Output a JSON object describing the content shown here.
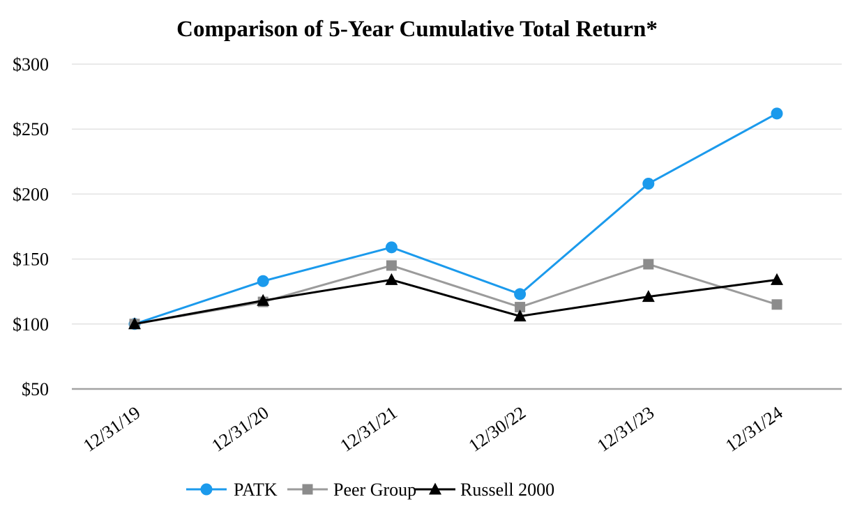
{
  "chart_data": {
    "type": "line",
    "title": "Comparison of 5-Year Cumulative Total Return*",
    "categories": [
      "12/31/19",
      "12/31/20",
      "12/31/21",
      "12/30/22",
      "12/31/23",
      "12/31/24"
    ],
    "series": [
      {
        "name": "PATK",
        "marker": "circle",
        "color": "#1b9aec",
        "marker_color": "#1b9aec",
        "values": [
          100,
          133,
          159,
          123,
          208,
          262
        ]
      },
      {
        "name": "Peer Group",
        "marker": "square",
        "color": "#9b9b9b",
        "marker_color": "#8c8c8c",
        "values": [
          100,
          117,
          145,
          113,
          146,
          115
        ]
      },
      {
        "name": "Russell 2000",
        "marker": "triangle",
        "color": "#000000",
        "marker_color": "#000000",
        "values": [
          100,
          118,
          134,
          106,
          121,
          134
        ]
      }
    ],
    "y_axis": {
      "min": 50,
      "max": 300,
      "step": 50,
      "tick_labels": [
        "$50",
        "$100",
        "$150",
        "$200",
        "$250",
        "$300"
      ]
    },
    "xlabel": "",
    "ylabel": "",
    "grid": true,
    "legend_position": "bottom",
    "colors": {
      "gridline": "#e2e2e2",
      "axis_line": "#a3a3a3",
      "background": "#ffffff",
      "text": "#000000"
    }
  }
}
